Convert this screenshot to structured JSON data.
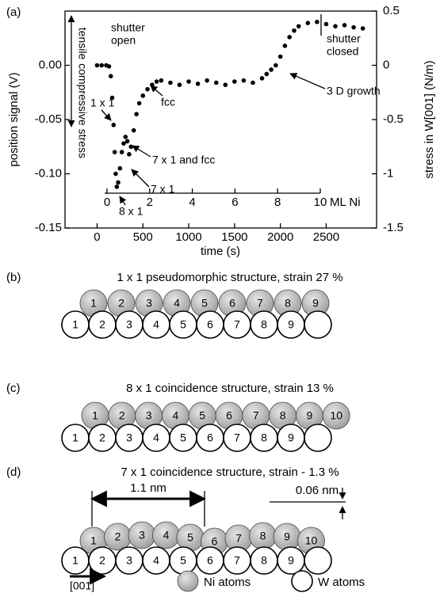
{
  "chart_data": {
    "type": "scatter",
    "panel_label": "(a)",
    "x_label": "time (s)",
    "y_label": "position signal (V)",
    "y2_label": "stress in W[001] (N/m)",
    "x2_label": "ML Ni",
    "xlim": [
      -350,
      3050
    ],
    "xticks": [
      0,
      500,
      1000,
      1500,
      2000,
      2500
    ],
    "ylim": [
      -0.15,
      0.05
    ],
    "yticks": [
      {
        "value": 0,
        "label": "0.00"
      },
      -0.05,
      {
        "value": -0.1,
        "label": "-0.10"
      },
      -0.15
    ],
    "y2lim": [
      -1.5,
      0.5
    ],
    "y2ticks": [
      0.5,
      0,
      -0.5,
      -1,
      -1.5
    ],
    "x2lim": [
      -1.97,
      12.64
    ],
    "x2ticks": [
      0,
      2,
      4,
      6,
      8,
      10
    ],
    "color": "#000000",
    "x": [
      0,
      50,
      100,
      130,
      150,
      165,
      180,
      192,
      203,
      215,
      230,
      250,
      270,
      290,
      310,
      330,
      350,
      370,
      400,
      430,
      460,
      500,
      550,
      600,
      650,
      700,
      800,
      900,
      1000,
      1100,
      1200,
      1300,
      1400,
      1500,
      1600,
      1700,
      1800,
      1850,
      1900,
      1950,
      2000,
      2050,
      2100,
      2150,
      2200,
      2300,
      2400,
      2500,
      2600,
      2700,
      2800,
      2900
    ],
    "values": [
      0.0,
      0.0,
      0.0,
      -0.001,
      -0.01,
      -0.03,
      -0.055,
      -0.08,
      -0.1,
      -0.112,
      -0.108,
      -0.095,
      -0.08,
      -0.072,
      -0.066,
      -0.07,
      -0.082,
      -0.075,
      -0.06,
      -0.045,
      -0.035,
      -0.028,
      -0.022,
      -0.018,
      -0.015,
      -0.014,
      -0.016,
      -0.018,
      -0.015,
      -0.017,
      -0.014,
      -0.016,
      -0.018,
      -0.015,
      -0.014,
      -0.016,
      -0.012,
      -0.008,
      -0.004,
      0.0,
      0.008,
      0.018,
      0.026,
      0.032,
      0.036,
      0.039,
      0.04,
      0.038,
      0.036,
      0.037,
      0.035,
      0.034
    ],
    "annotations": [
      [
        "shutter",
        "open"
      ],
      [
        "1 x 1"
      ],
      [
        "fcc"
      ],
      [
        "7 x 1 and fcc"
      ],
      [
        "7 x 1"
      ],
      [
        "8 x 1"
      ],
      [
        "3 D growth"
      ],
      [
        "shutter",
        "closed"
      ],
      [
        "tensile"
      ],
      [
        "compressive stress"
      ]
    ]
  },
  "panels": [
    {
      "label": "(b)",
      "title": "1 x 1 pseudomorphic structure, strain 27 %",
      "ni_atoms": [
        1,
        2,
        3,
        4,
        5,
        6,
        7,
        8,
        9
      ],
      "w_atoms": [
        1,
        2,
        3,
        4,
        5,
        6,
        7,
        8,
        9
      ]
    },
    {
      "label": "(c)",
      "title": "8 x 1 coincidence structure, strain 13 %",
      "ni_atoms": [
        1,
        2,
        3,
        4,
        5,
        6,
        7,
        8,
        9,
        10
      ],
      "w_atoms": [
        1,
        2,
        3,
        4,
        5,
        6,
        7,
        8,
        9
      ]
    },
    {
      "label": "(d)",
      "title": "7 x 1 coincidence structure, strain - 1.3 %",
      "ni_atoms": [
        1,
        2,
        3,
        4,
        5,
        6,
        7,
        8,
        9,
        10
      ],
      "w_atoms": [
        1,
        2,
        3,
        4,
        5,
        6,
        7,
        8,
        9
      ],
      "dimensions": [
        "1.1 nm",
        "0.06 nm"
      ]
    }
  ],
  "legend": {
    "direction": "[001]",
    "items": [
      "Ni atoms",
      "W atoms"
    ]
  }
}
